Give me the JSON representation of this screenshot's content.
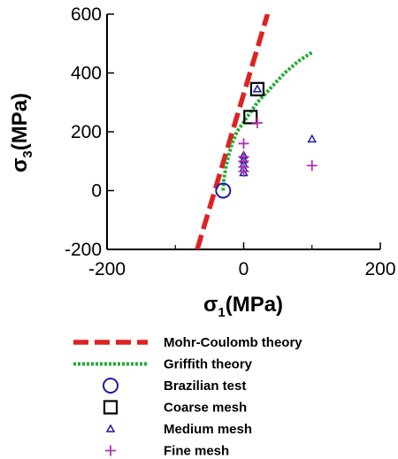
{
  "chart_data": {
    "type": "scatter",
    "xlim": [
      -200,
      200
    ],
    "ylim": [
      -200,
      600
    ],
    "xticks": [
      "-200",
      "0",
      "200"
    ],
    "yticks": [
      "-200",
      "0",
      "200",
      "400",
      "600"
    ],
    "xlabel": {
      "sym": "σ",
      "sub": "1",
      "unit": "(MPa)"
    },
    "ylabel": {
      "sym": "σ",
      "sub": "3",
      "unit": "(MPa)"
    },
    "legend_position": "below",
    "series": [
      {
        "name": "Mohr-Coulomb theory",
        "kind": "line",
        "style": "dashed",
        "color": "#dd2222",
        "points": [
          [
            -68,
            -200
          ],
          [
            35,
            600
          ]
        ]
      },
      {
        "name": "Griffith theory",
        "kind": "line",
        "style": "dotted",
        "color": "#22aa33",
        "points": [
          [
            -30,
            0
          ],
          [
            -29,
            40
          ],
          [
            -26,
            80
          ],
          [
            -22,
            120
          ],
          [
            -17,
            160
          ],
          [
            -10,
            200
          ],
          [
            5,
            250
          ],
          [
            20,
            300
          ],
          [
            40,
            350
          ],
          [
            60,
            400
          ],
          [
            80,
            440
          ],
          [
            100,
            470
          ]
        ]
      },
      {
        "name": "Brazilian test",
        "kind": "marker",
        "marker": "circle",
        "color": "#1a1aa0",
        "points": [
          [
            -30,
            0
          ]
        ]
      },
      {
        "name": "Coarse mesh",
        "kind": "marker",
        "marker": "square",
        "color": "#000000",
        "points": [
          [
            10,
            250
          ],
          [
            20,
            345
          ]
        ]
      },
      {
        "name": "Medium mesh",
        "kind": "marker",
        "marker": "triangle",
        "color": "#1a1aa0",
        "points": [
          [
            20,
            345
          ],
          [
            0,
            60
          ],
          [
            0,
            75
          ],
          [
            0,
            90
          ],
          [
            0,
            105
          ],
          [
            0,
            120
          ],
          [
            100,
            175
          ]
        ]
      },
      {
        "name": "Fine mesh",
        "kind": "marker",
        "marker": "plus",
        "color": "#b030b0",
        "points": [
          [
            20,
            230
          ],
          [
            0,
            160
          ],
          [
            0,
            115
          ],
          [
            0,
            100
          ],
          [
            0,
            80
          ],
          [
            0,
            65
          ],
          [
            100,
            85
          ]
        ]
      }
    ]
  }
}
